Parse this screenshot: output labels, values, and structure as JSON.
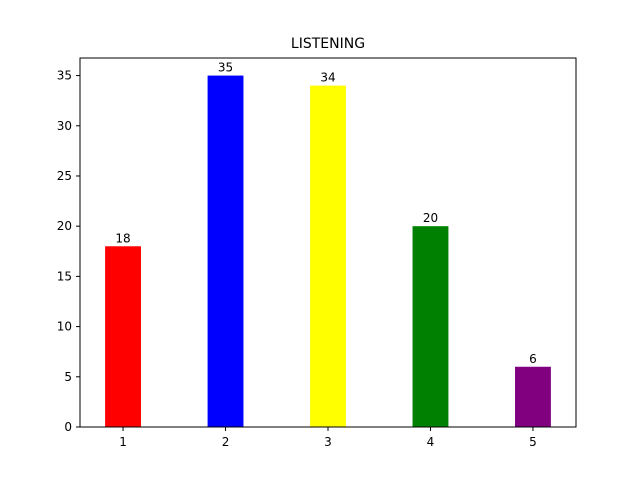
{
  "chart_data": {
    "type": "bar",
    "title": "LISTENING",
    "xlabel": "",
    "ylabel": "",
    "categories": [
      "1",
      "2",
      "3",
      "4",
      "5"
    ],
    "values": [
      18,
      35,
      34,
      20,
      6
    ],
    "colors": [
      "#ff0000",
      "#0000ff",
      "#ffff00",
      "#008000",
      "#800080"
    ],
    "data_labels": [
      "18",
      "35",
      "34",
      "20",
      "6"
    ],
    "ylim": [
      0,
      35
    ],
    "y_ticks": [
      0,
      5,
      10,
      15,
      20,
      25,
      30,
      35
    ],
    "y_tick_labels": [
      "0",
      "5",
      "10",
      "15",
      "20",
      "25",
      "30",
      "35"
    ],
    "x_tick_labels": [
      "1",
      "2",
      "3",
      "4",
      "5"
    ],
    "grid": false,
    "legend": "none"
  }
}
